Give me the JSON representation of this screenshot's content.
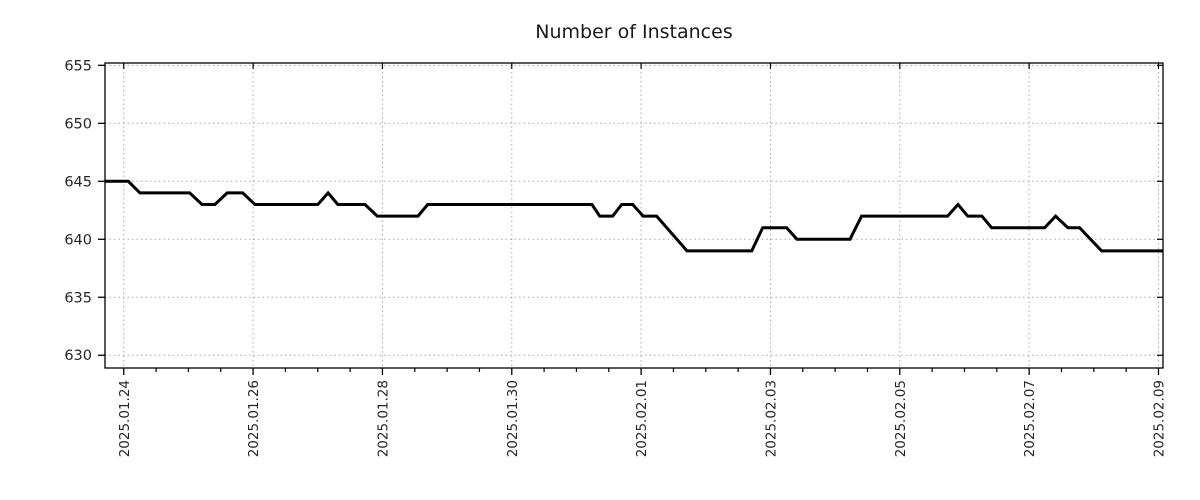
{
  "title": "Number of Instances",
  "colors": {
    "line": "#000000",
    "grid": "#a8a8a8",
    "frame": "#000000",
    "tick_text": "#262626",
    "title_text": "#1a1a1a",
    "background": "#ffffff"
  },
  "chart_data": {
    "type": "line",
    "title": "Number of Instances",
    "xlabel": "",
    "ylabel": "",
    "x_unit": "days since 2025-01-24",
    "xlim_days": [
      -0.29,
      16.07
    ],
    "ylim": [
      628.9,
      655.2
    ],
    "y_ticks": [
      630,
      635,
      640,
      645,
      650,
      655
    ],
    "x_tick_days": [
      0,
      2,
      4,
      6,
      8,
      10,
      12,
      14,
      16
    ],
    "x_tick_labels": [
      "2025.01.24",
      "2025.01.26",
      "2025.01.28",
      "2025.01.30",
      "2025.02.01",
      "2025.02.03",
      "2025.02.05",
      "2025.02.07",
      "2025.02.09"
    ],
    "x_minor_step_days": 0.5,
    "grid": "dotted",
    "legend": "none",
    "series": [
      {
        "name": "instances",
        "color": "#000000",
        "line_width": 3,
        "points": [
          [
            -0.29,
            645
          ],
          [
            0.07,
            645
          ],
          [
            0.25,
            644
          ],
          [
            1.02,
            644
          ],
          [
            1.21,
            643
          ],
          [
            1.41,
            643
          ],
          [
            1.6,
            644
          ],
          [
            1.84,
            644
          ],
          [
            2.03,
            643
          ],
          [
            3.0,
            643
          ],
          [
            3.16,
            644
          ],
          [
            3.31,
            643
          ],
          [
            3.73,
            643
          ],
          [
            3.92,
            642
          ],
          [
            4.55,
            642
          ],
          [
            4.7,
            643
          ],
          [
            7.24,
            643
          ],
          [
            7.36,
            642
          ],
          [
            7.56,
            642
          ],
          [
            7.7,
            643
          ],
          [
            7.87,
            643
          ],
          [
            8.03,
            642
          ],
          [
            8.24,
            642
          ],
          [
            8.71,
            639
          ],
          [
            9.71,
            639
          ],
          [
            9.88,
            641
          ],
          [
            10.25,
            641
          ],
          [
            10.41,
            640
          ],
          [
            11.23,
            640
          ],
          [
            11.41,
            642
          ],
          [
            12.74,
            642
          ],
          [
            12.9,
            643
          ],
          [
            13.05,
            642
          ],
          [
            13.27,
            642
          ],
          [
            13.42,
            641
          ],
          [
            14.24,
            641
          ],
          [
            14.41,
            642
          ],
          [
            14.6,
            641
          ],
          [
            14.78,
            641
          ],
          [
            15.12,
            639
          ],
          [
            16.07,
            639
          ]
        ]
      }
    ]
  }
}
